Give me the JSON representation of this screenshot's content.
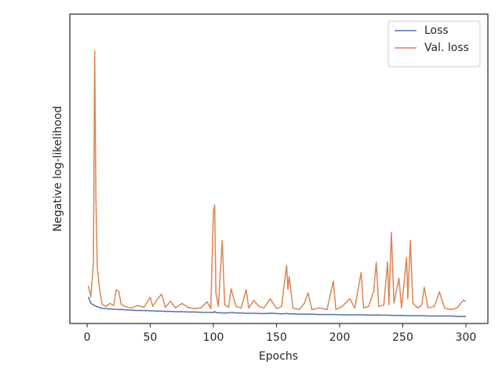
{
  "chart_data": {
    "type": "line",
    "xlabel": "Epochs",
    "ylabel": "Negative log-likelihood",
    "x": [
      1,
      3,
      5,
      6,
      7,
      8,
      10,
      12,
      15,
      18,
      21,
      23,
      25,
      27,
      30,
      35,
      40,
      45,
      50,
      52,
      55,
      59,
      62,
      66,
      70,
      75,
      80,
      85,
      90,
      95,
      98,
      100,
      101,
      102,
      104,
      107,
      109,
      112,
      114,
      118,
      122,
      126,
      128,
      132,
      136,
      140,
      145,
      150,
      154,
      158,
      159,
      160,
      163,
      168,
      172,
      175,
      178,
      184,
      190,
      195,
      197,
      202,
      208,
      212,
      217,
      219,
      223,
      227,
      229,
      231,
      235,
      238,
      239,
      241,
      243,
      247,
      249,
      253,
      254,
      256,
      258,
      262,
      265,
      267,
      270,
      275,
      279,
      283,
      288,
      293,
      298,
      300
    ],
    "series": [
      {
        "name": "Loss",
        "color": "#4c72b0",
        "values": [
          8.6,
          6.5,
          6.0,
          5.8,
          5.6,
          5.4,
          5.1,
          4.9,
          4.8,
          4.7,
          4.6,
          4.6,
          4.5,
          4.5,
          4.4,
          4.3,
          4.2,
          4.2,
          4.1,
          4.1,
          4.0,
          4.0,
          3.9,
          3.9,
          3.8,
          3.8,
          3.7,
          3.7,
          3.6,
          3.6,
          3.6,
          3.5,
          3.9,
          3.5,
          3.5,
          3.4,
          3.4,
          3.4,
          3.6,
          3.4,
          3.4,
          3.3,
          3.3,
          3.3,
          3.2,
          3.2,
          3.3,
          3.2,
          3.1,
          3.2,
          3.2,
          3.1,
          3.1,
          3.0,
          3.0,
          3.0,
          3.0,
          2.9,
          2.9,
          2.9,
          2.9,
          2.8,
          2.8,
          2.8,
          2.8,
          2.8,
          2.7,
          2.7,
          2.8,
          2.7,
          2.7,
          2.7,
          2.6,
          2.7,
          2.6,
          2.6,
          2.6,
          2.5,
          2.5,
          2.5,
          2.5,
          2.5,
          2.5,
          2.5,
          2.4,
          2.4,
          2.4,
          2.4,
          2.4,
          2.3,
          2.3,
          2.3
        ]
      },
      {
        "name": "Val. loss",
        "color": "#dd8452",
        "values": [
          12.2,
          8.6,
          20,
          88.1,
          40,
          18.3,
          10.7,
          6.1,
          5.5,
          6.5,
          5.8,
          10.9,
          10.5,
          6.2,
          5.5,
          5.0,
          5.8,
          5.2,
          8.5,
          5.5,
          7.5,
          9.5,
          5.2,
          7.2,
          5.0,
          6.5,
          5.2,
          4.8,
          5.0,
          7.0,
          4.8,
          36,
          38.3,
          10,
          5.5,
          26.9,
          6.0,
          5.2,
          11.2,
          5.5,
          5.0,
          10.9,
          5.0,
          7.5,
          5.5,
          5.0,
          8.0,
          4.8,
          5.5,
          18.8,
          11.0,
          15.2,
          5.0,
          4.5,
          6.5,
          9.9,
          4.5,
          5.0,
          4.5,
          13.7,
          4.5,
          5.5,
          8.0,
          5.0,
          16.5,
          5.0,
          5.5,
          10.5,
          19.8,
          5.5,
          6.0,
          20.0,
          6.0,
          29.4,
          6.5,
          14.7,
          5.0,
          21.3,
          8,
          26.9,
          6.5,
          5.0,
          6.0,
          11.7,
          5.0,
          5.5,
          10.2,
          5.0,
          4.5,
          5.0,
          7.6,
          7.0
        ]
      }
    ],
    "xlim": [
      -13.7,
      317.4
    ],
    "ylim": [
      0,
      100
    ],
    "xticks": [
      0,
      50,
      100,
      150,
      200,
      250,
      300
    ],
    "legend": "upper right"
  }
}
